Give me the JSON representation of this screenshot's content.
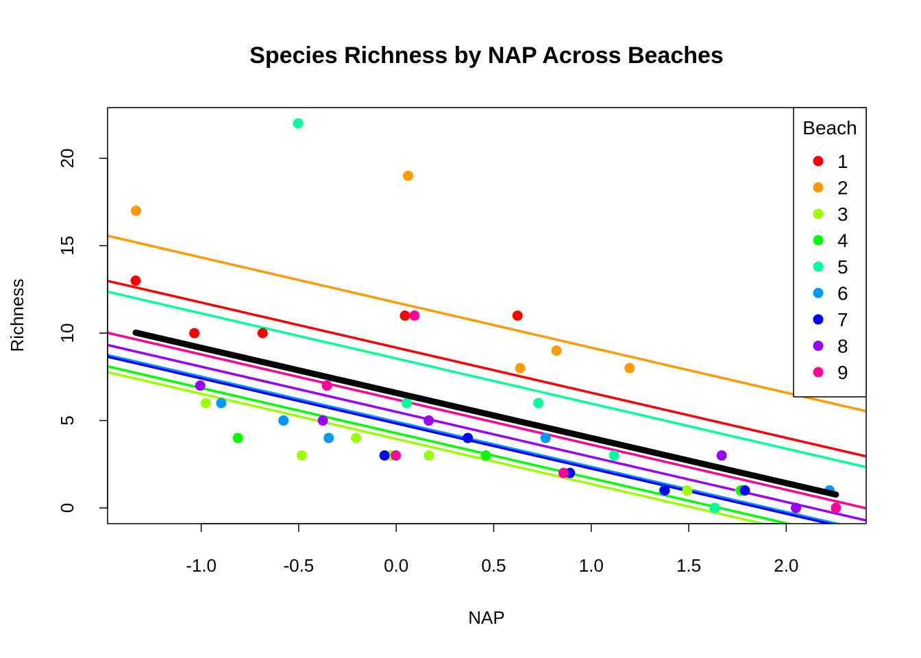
{
  "chart_data": {
    "type": "scatter",
    "title": "Species Richness by NAP Across Beaches",
    "xlabel": "NAP",
    "ylabel": "Richness",
    "xlim": [
      -1.48,
      2.41
    ],
    "ylim": [
      -0.9,
      22.9
    ],
    "xticks": [
      -1.0,
      -0.5,
      0.0,
      0.5,
      1.0,
      1.5,
      2.0
    ],
    "xtick_labels": [
      "-1.0",
      "-0.5",
      "0.0",
      "0.5",
      "1.0",
      "1.5",
      "2.0"
    ],
    "yticks": [
      0,
      5,
      10,
      15,
      20
    ],
    "ytick_labels": [
      "0",
      "5",
      "10",
      "15",
      "20"
    ],
    "grid": false,
    "legend": {
      "title": "Beach",
      "position": "top-right"
    },
    "slope": -2.58,
    "series": [
      {
        "name": "1",
        "color": "#FF0000",
        "intercept": 9.17,
        "points": [
          [
            -1.336,
            13
          ],
          [
            -1.035,
            10
          ],
          [
            -0.685,
            10
          ],
          [
            0.045,
            11
          ],
          [
            0.622,
            11
          ]
        ]
      },
      {
        "name": "2",
        "color": "#FF9900",
        "intercept": 11.75,
        "points": [
          [
            -1.334,
            17
          ],
          [
            0.061,
            19
          ],
          [
            0.636,
            8
          ],
          [
            0.822,
            9
          ],
          [
            1.197,
            8
          ]
        ]
      },
      {
        "name": "3",
        "color": "#99FF00",
        "intercept": 3.95,
        "points": [
          [
            -0.976,
            6
          ],
          [
            -0.484,
            3
          ],
          [
            -0.206,
            4
          ],
          [
            -0.027,
            3
          ],
          [
            0.168,
            3
          ],
          [
            1.493,
            1
          ],
          [
            1.764,
            1
          ]
        ]
      },
      {
        "name": "4",
        "color": "#00FF00",
        "intercept": 4.28,
        "points": [
          [
            -0.812,
            4
          ],
          [
            0.46,
            3
          ],
          [
            1.373,
            1
          ],
          [
            1.634,
            0
          ],
          [
            1.769,
            1
          ]
        ]
      },
      {
        "name": "5",
        "color": "#00FF99",
        "intercept": 8.55,
        "points": [
          [
            -0.503,
            22
          ],
          [
            0.054,
            6
          ],
          [
            0.729,
            6
          ],
          [
            1.117,
            3
          ],
          [
            1.375,
            1
          ],
          [
            1.632,
            0
          ]
        ]
      },
      {
        "name": "6",
        "color": "#0099FF",
        "intercept": 4.93,
        "points": [
          [
            -0.897,
            6
          ],
          [
            -0.578,
            5
          ],
          [
            -0.346,
            4
          ],
          [
            0.766,
            4
          ],
          [
            2.222,
            1
          ]
        ]
      },
      {
        "name": "7",
        "color": "#0000FF",
        "intercept": 4.83,
        "points": [
          [
            -0.06,
            3
          ],
          [
            0.367,
            4
          ],
          [
            0.891,
            2
          ],
          [
            1.377,
            1
          ],
          [
            1.788,
            1
          ]
        ]
      },
      {
        "name": "8",
        "color": "#9900FF",
        "intercept": 5.5,
        "points": [
          [
            -1.005,
            7
          ],
          [
            -0.376,
            5
          ],
          [
            0.167,
            5
          ],
          [
            1.669,
            3
          ],
          [
            2.05,
            0
          ]
        ]
      },
      {
        "name": "9",
        "color": "#FF0099",
        "intercept": 6.2,
        "points": [
          [
            -0.355,
            7
          ],
          [
            -0.002,
            3
          ],
          [
            0.094,
            11
          ],
          [
            0.858,
            2
          ],
          [
            2.255,
            0
          ]
        ]
      }
    ],
    "overall_fit": {
      "color": "#000000",
      "x_range": [
        -1.336,
        2.255
      ],
      "intercept": 6.58,
      "slope": -2.58
    }
  }
}
